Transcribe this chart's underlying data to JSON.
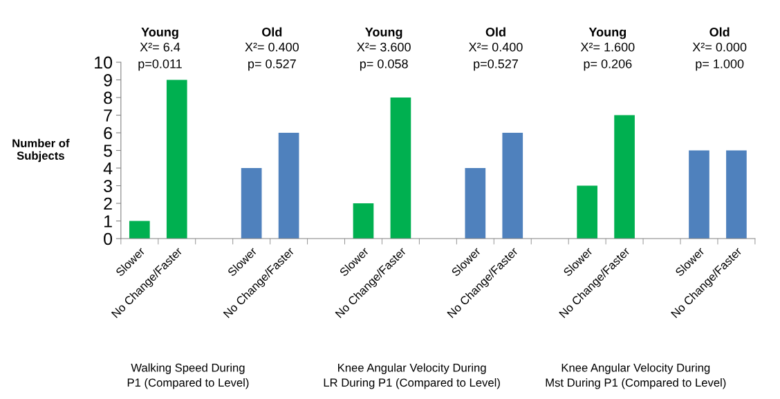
{
  "chart_data": {
    "type": "bar",
    "ylabel": "Number of\nSubjects",
    "categories": [
      "Slower",
      "No Change/Faster",
      null,
      "Slower",
      "No Change/Faster",
      null,
      "Slower",
      "No Change/Faster",
      null,
      "Slower",
      "No Change/Faster",
      null,
      "Slower",
      "No Change/Faster",
      null,
      "Slower",
      "No Change/Faster"
    ],
    "values": [
      1,
      9,
      null,
      4,
      6,
      null,
      2,
      8,
      null,
      4,
      6,
      null,
      3,
      7,
      null,
      5,
      5
    ],
    "colors": [
      "#00b050",
      "#00b050",
      null,
      "#4f81bd",
      "#4f81bd",
      null,
      "#00b050",
      "#00b050",
      null,
      "#4f81bd",
      "#4f81bd",
      null,
      "#00b050",
      "#00b050",
      null,
      "#4f81bd",
      "#4f81bd"
    ],
    "ylim": [
      0,
      10
    ],
    "yticks": [
      0,
      1,
      2,
      3,
      4,
      5,
      6,
      7,
      8,
      9,
      10
    ],
    "grid": false,
    "legend": false,
    "annotations": [
      "Young",
      "X²= 6.4",
      "p=0.011",
      "Old",
      "X²= 0.400",
      "p= 0.527",
      "Young",
      "X²= 3.600",
      "p= 0.058",
      "Old",
      "X²= 0.400",
      "p=0.527",
      "Young",
      "X²= 1.600",
      "p= 0.206",
      "Old",
      "X²= 0.000",
      "p= 1.000",
      "Walking Speed During\nP1 (Compared to Level)",
      "Knee Angular Velocity During\nLR During P1 (Compared to Level)",
      "Knee Angular Velocity During\nMst During P1 (Compared to Level)"
    ]
  }
}
